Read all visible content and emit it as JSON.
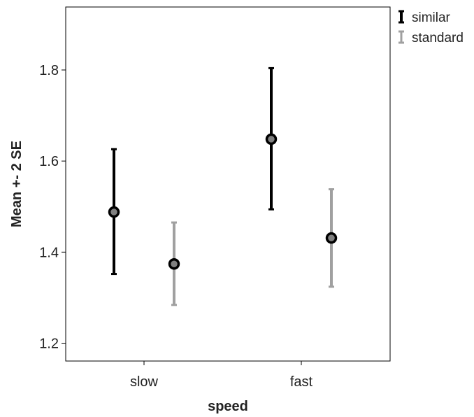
{
  "chart_data": {
    "type": "errorbar",
    "title": "",
    "xlabel": "speed",
    "ylabel": "Mean +- 2 SE",
    "categories": [
      "slow",
      "fast"
    ],
    "ylim": [
      1.17,
      1.94
    ],
    "yticks": [
      1.2,
      1.4,
      1.6,
      1.8
    ],
    "ytick_labels": [
      "1.2",
      "1.4",
      "1.6",
      "1.8"
    ],
    "grid": false,
    "legend_position": "outside-top-right",
    "series": [
      {
        "name": "similar",
        "color": "#000000",
        "means": [
          1.488,
          1.648
        ],
        "lower": [
          1.352,
          1.494
        ],
        "upper": [
          1.626,
          1.804
        ]
      },
      {
        "name": "standard",
        "color": "#a0a0a0",
        "means": [
          1.374,
          1.431
        ],
        "lower": [
          1.284,
          1.324
        ],
        "upper": [
          1.465,
          1.538
        ]
      }
    ]
  }
}
